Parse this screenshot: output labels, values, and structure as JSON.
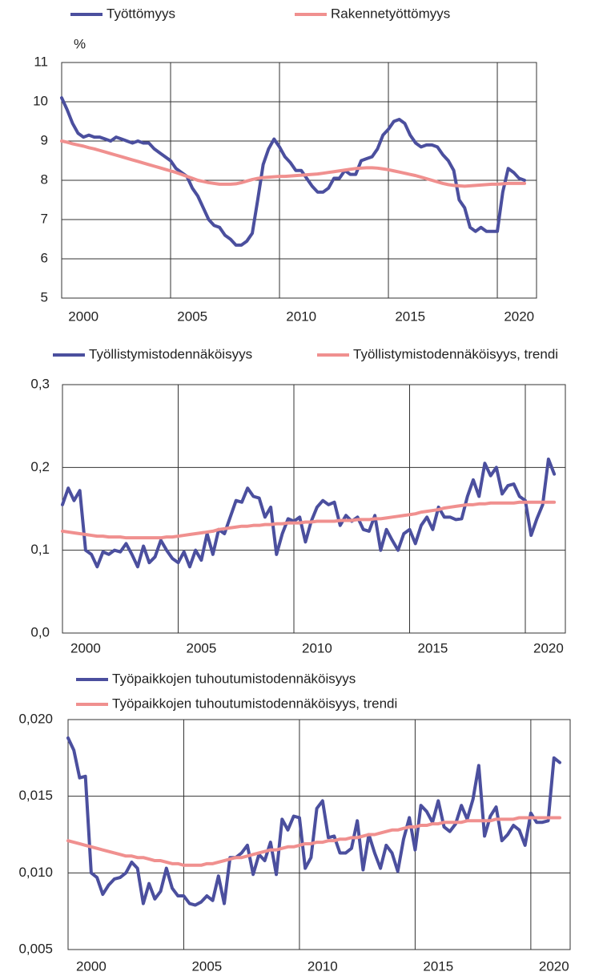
{
  "chart_data": [
    {
      "type": "line",
      "y_unit": "%",
      "x": [
        1999,
        1999.25,
        1999.5,
        1999.75,
        2000,
        2000.25,
        2000.5,
        2000.75,
        2001,
        2001.25,
        2001.5,
        2001.75,
        2002,
        2002.25,
        2002.5,
        2002.75,
        2003,
        2003.25,
        2003.5,
        2003.75,
        2004,
        2004.25,
        2004.5,
        2004.75,
        2005,
        2005.25,
        2005.5,
        2005.75,
        2006,
        2006.25,
        2006.5,
        2006.75,
        2007,
        2007.25,
        2007.5,
        2007.75,
        2008,
        2008.25,
        2008.5,
        2008.75,
        2009,
        2009.25,
        2009.5,
        2009.75,
        2010,
        2010.25,
        2010.5,
        2010.75,
        2011,
        2011.25,
        2011.5,
        2011.75,
        2012,
        2012.25,
        2012.5,
        2012.75,
        2013,
        2013.25,
        2013.5,
        2013.75,
        2014,
        2014.25,
        2014.5,
        2014.75,
        2015,
        2015.25,
        2015.5,
        2015.75,
        2016,
        2016.25,
        2016.5,
        2016.75,
        2017,
        2017.25,
        2017.5,
        2017.75,
        2018,
        2018.25,
        2018.5,
        2018.75,
        2019,
        2019.25,
        2019.5,
        2019.75,
        2020,
        2020.25
      ],
      "series": [
        {
          "name": "Työttömyys",
          "color": "#4b4f9e",
          "values": [
            10.1,
            9.8,
            9.45,
            9.2,
            9.1,
            9.15,
            9.1,
            9.1,
            9.05,
            9.0,
            9.1,
            9.05,
            9.0,
            8.95,
            9.0,
            8.95,
            8.95,
            8.8,
            8.7,
            8.6,
            8.5,
            8.3,
            8.2,
            8.1,
            7.8,
            7.6,
            7.3,
            7.0,
            6.85,
            6.8,
            6.6,
            6.5,
            6.35,
            6.35,
            6.45,
            6.65,
            7.5,
            8.4,
            8.8,
            9.05,
            8.85,
            8.6,
            8.45,
            8.25,
            8.25,
            8.05,
            7.85,
            7.7,
            7.7,
            7.8,
            8.05,
            8.05,
            8.25,
            8.15,
            8.15,
            8.5,
            8.55,
            8.6,
            8.8,
            9.15,
            9.3,
            9.5,
            9.55,
            9.45,
            9.15,
            8.95,
            8.85,
            8.9,
            8.9,
            8.85,
            8.65,
            8.5,
            8.25,
            7.5,
            7.3,
            6.8,
            6.7,
            6.8,
            6.7,
            6.7,
            6.7,
            7.7,
            8.3,
            8.2,
            8.05,
            8.0
          ]
        },
        {
          "name": "Rakennetyöttömyys",
          "color": "#f0908f",
          "values": [
            9.0,
            8.97,
            8.93,
            8.9,
            8.87,
            8.83,
            8.8,
            8.76,
            8.72,
            8.68,
            8.64,
            8.6,
            8.56,
            8.52,
            8.48,
            8.44,
            8.4,
            8.36,
            8.32,
            8.28,
            8.24,
            8.2,
            8.15,
            8.1,
            8.05,
            8.0,
            7.97,
            7.94,
            7.92,
            7.9,
            7.9,
            7.9,
            7.91,
            7.94,
            7.98,
            8.02,
            8.05,
            8.07,
            8.08,
            8.09,
            8.1,
            8.1,
            8.11,
            8.12,
            8.13,
            8.14,
            8.15,
            8.16,
            8.18,
            8.2,
            8.22,
            8.24,
            8.26,
            8.28,
            8.3,
            8.31,
            8.32,
            8.32,
            8.31,
            8.29,
            8.27,
            8.24,
            8.21,
            8.18,
            8.15,
            8.12,
            8.08,
            8.04,
            8.0,
            7.96,
            7.92,
            7.89,
            7.87,
            7.86,
            7.85,
            7.86,
            7.87,
            7.88,
            7.89,
            7.9,
            7.9,
            7.91,
            7.92,
            7.92,
            7.92,
            7.92
          ]
        }
      ],
      "xlim": [
        1999,
        2020.8
      ],
      "xticks": [
        2000,
        2005,
        2010,
        2015,
        2020
      ],
      "xgrid": [
        2004,
        2009,
        2014,
        2019
      ],
      "ylim": [
        5,
        11
      ],
      "yticks": [
        5,
        6,
        7,
        8,
        9,
        10,
        11
      ],
      "grid": true
    },
    {
      "type": "line",
      "x": [
        1999,
        1999.25,
        1999.5,
        1999.75,
        2000,
        2000.25,
        2000.5,
        2000.75,
        2001,
        2001.25,
        2001.5,
        2001.75,
        2002,
        2002.25,
        2002.5,
        2002.75,
        2003,
        2003.25,
        2003.5,
        2003.75,
        2004,
        2004.25,
        2004.5,
        2004.75,
        2005,
        2005.25,
        2005.5,
        2005.75,
        2006,
        2006.25,
        2006.5,
        2006.75,
        2007,
        2007.25,
        2007.5,
        2007.75,
        2008,
        2008.25,
        2008.5,
        2008.75,
        2009,
        2009.25,
        2009.5,
        2009.75,
        2010,
        2010.25,
        2010.5,
        2010.75,
        2011,
        2011.25,
        2011.5,
        2011.75,
        2012,
        2012.25,
        2012.5,
        2012.75,
        2013,
        2013.25,
        2013.5,
        2013.75,
        2014,
        2014.25,
        2014.5,
        2014.75,
        2015,
        2015.25,
        2015.5,
        2015.75,
        2016,
        2016.25,
        2016.5,
        2016.75,
        2017,
        2017.25,
        2017.5,
        2017.75,
        2018,
        2018.25,
        2018.5,
        2018.75,
        2019,
        2019.25,
        2019.5,
        2019.75,
        2020,
        2020.25
      ],
      "series": [
        {
          "name": "Työllistymistodennäköisyys",
          "color": "#4b4f9e",
          "values": [
            0.155,
            0.175,
            0.16,
            0.172,
            0.1,
            0.095,
            0.08,
            0.098,
            0.095,
            0.1,
            0.098,
            0.108,
            0.095,
            0.08,
            0.105,
            0.085,
            0.092,
            0.112,
            0.1,
            0.09,
            0.085,
            0.098,
            0.08,
            0.1,
            0.088,
            0.12,
            0.095,
            0.125,
            0.12,
            0.14,
            0.16,
            0.158,
            0.175,
            0.165,
            0.163,
            0.14,
            0.152,
            0.095,
            0.12,
            0.138,
            0.135,
            0.14,
            0.11,
            0.135,
            0.152,
            0.16,
            0.155,
            0.158,
            0.13,
            0.142,
            0.135,
            0.14,
            0.125,
            0.123,
            0.142,
            0.1,
            0.125,
            0.112,
            0.1,
            0.12,
            0.125,
            0.108,
            0.13,
            0.14,
            0.125,
            0.152,
            0.14,
            0.14,
            0.137,
            0.138,
            0.165,
            0.185,
            0.165,
            0.205,
            0.19,
            0.2,
            0.168,
            0.178,
            0.18,
            0.165,
            0.16,
            0.118,
            0.138,
            0.155,
            0.21,
            0.192
          ]
        },
        {
          "name": "Työllistymistodennäköisyys, trendi",
          "color": "#f0908f",
          "values": [
            0.123,
            0.122,
            0.121,
            0.12,
            0.119,
            0.118,
            0.117,
            0.117,
            0.116,
            0.116,
            0.116,
            0.115,
            0.115,
            0.115,
            0.115,
            0.115,
            0.115,
            0.115,
            0.116,
            0.116,
            0.117,
            0.118,
            0.119,
            0.12,
            0.121,
            0.122,
            0.123,
            0.125,
            0.126,
            0.127,
            0.128,
            0.129,
            0.129,
            0.13,
            0.13,
            0.131,
            0.131,
            0.132,
            0.132,
            0.133,
            0.133,
            0.133,
            0.134,
            0.134,
            0.135,
            0.135,
            0.135,
            0.135,
            0.136,
            0.136,
            0.136,
            0.137,
            0.137,
            0.137,
            0.138,
            0.138,
            0.139,
            0.14,
            0.141,
            0.142,
            0.143,
            0.144,
            0.146,
            0.147,
            0.148,
            0.149,
            0.151,
            0.152,
            0.153,
            0.154,
            0.155,
            0.155,
            0.156,
            0.156,
            0.157,
            0.157,
            0.157,
            0.157,
            0.157,
            0.158,
            0.158,
            0.158,
            0.158,
            0.158,
            0.158,
            0.158
          ]
        }
      ],
      "xlim": [
        1999,
        2020.73
      ],
      "xticks": [
        2000,
        2005,
        2010,
        2015,
        2020
      ],
      "xgrid": [
        2004,
        2009,
        2014,
        2019
      ],
      "ylim": [
        0,
        0.3
      ],
      "yticks": [
        {
          "value": 0,
          "label": "0,0"
        },
        {
          "value": 0.1,
          "label": "0,1"
        },
        {
          "value": 0.2,
          "label": "0,2"
        },
        {
          "value": 0.3,
          "label": "0,3"
        }
      ],
      "grid": true
    },
    {
      "type": "line",
      "x": [
        1999,
        1999.25,
        1999.5,
        1999.75,
        2000,
        2000.25,
        2000.5,
        2000.75,
        2001,
        2001.25,
        2001.5,
        2001.75,
        2002,
        2002.25,
        2002.5,
        2002.75,
        2003,
        2003.25,
        2003.5,
        2003.75,
        2004,
        2004.25,
        2004.5,
        2004.75,
        2005,
        2005.25,
        2005.5,
        2005.75,
        2006,
        2006.25,
        2006.5,
        2006.75,
        2007,
        2007.25,
        2007.5,
        2007.75,
        2008,
        2008.25,
        2008.5,
        2008.75,
        2009,
        2009.25,
        2009.5,
        2009.75,
        2010,
        2010.25,
        2010.5,
        2010.75,
        2011,
        2011.25,
        2011.5,
        2011.75,
        2012,
        2012.25,
        2012.5,
        2012.75,
        2013,
        2013.25,
        2013.5,
        2013.75,
        2014,
        2014.25,
        2014.5,
        2014.75,
        2015,
        2015.25,
        2015.5,
        2015.75,
        2016,
        2016.25,
        2016.5,
        2016.75,
        2017,
        2017.25,
        2017.5,
        2017.75,
        2018,
        2018.25,
        2018.5,
        2018.75,
        2019,
        2019.25,
        2019.5,
        2019.75,
        2020,
        2020.25
      ],
      "series": [
        {
          "name": "Työpaikkojen tuhoutumistodennäköisyys",
          "color": "#4b4f9e",
          "values": [
            0.0188,
            0.018,
            0.0162,
            0.0163,
            0.01,
            0.0097,
            0.0086,
            0.0092,
            0.0096,
            0.0097,
            0.01,
            0.0107,
            0.0103,
            0.008,
            0.0093,
            0.0083,
            0.0088,
            0.0103,
            0.009,
            0.0085,
            0.0085,
            0.008,
            0.0079,
            0.0081,
            0.0085,
            0.0082,
            0.0098,
            0.008,
            0.011,
            0.011,
            0.0113,
            0.0118,
            0.0099,
            0.0112,
            0.0108,
            0.012,
            0.0099,
            0.0135,
            0.0128,
            0.0137,
            0.0136,
            0.0103,
            0.011,
            0.0142,
            0.0147,
            0.0123,
            0.0124,
            0.0113,
            0.0113,
            0.0116,
            0.0134,
            0.0102,
            0.0125,
            0.0113,
            0.0103,
            0.0118,
            0.0113,
            0.0101,
            0.0122,
            0.0136,
            0.0115,
            0.0144,
            0.014,
            0.0133,
            0.0147,
            0.013,
            0.0127,
            0.0132,
            0.0144,
            0.0135,
            0.0148,
            0.017,
            0.0124,
            0.0137,
            0.0143,
            0.0121,
            0.0125,
            0.0131,
            0.0128,
            0.0118,
            0.0139,
            0.0133,
            0.0133,
            0.0134,
            0.0175,
            0.0172
          ]
        },
        {
          "name": "Työpaikkojen tuhoutumistodennäköisyys, trendi",
          "color": "#f0908f",
          "values": [
            0.0121,
            0.012,
            0.0119,
            0.0118,
            0.0117,
            0.0116,
            0.0115,
            0.0114,
            0.0113,
            0.0112,
            0.0111,
            0.0111,
            0.011,
            0.011,
            0.0109,
            0.0108,
            0.0108,
            0.0107,
            0.0106,
            0.0106,
            0.0105,
            0.0105,
            0.0105,
            0.0105,
            0.0106,
            0.0106,
            0.0107,
            0.0108,
            0.0109,
            0.011,
            0.011,
            0.0111,
            0.0112,
            0.0113,
            0.0114,
            0.0115,
            0.0115,
            0.0116,
            0.0117,
            0.0117,
            0.0118,
            0.0119,
            0.0119,
            0.012,
            0.012,
            0.0121,
            0.0121,
            0.0122,
            0.0122,
            0.0123,
            0.0123,
            0.0124,
            0.0125,
            0.0125,
            0.0126,
            0.0127,
            0.0128,
            0.0128,
            0.0129,
            0.013,
            0.013,
            0.0131,
            0.0131,
            0.0132,
            0.0132,
            0.0133,
            0.0133,
            0.0133,
            0.0133,
            0.0134,
            0.0134,
            0.0134,
            0.0134,
            0.0134,
            0.0135,
            0.0135,
            0.0135,
            0.0135,
            0.0136,
            0.0136,
            0.0136,
            0.0136,
            0.0136,
            0.0136,
            0.0136,
            0.0136
          ]
        }
      ],
      "xlim": [
        1999,
        2020.7
      ],
      "xticks": [
        2000,
        2005,
        2010,
        2015,
        2020
      ],
      "xgrid": [
        2004,
        2009,
        2014,
        2019
      ],
      "ylim": [
        0.005,
        0.02
      ],
      "yticks": [
        {
          "value": 0.005,
          "label": "0,005"
        },
        {
          "value": 0.01,
          "label": "0,010"
        },
        {
          "value": 0.015,
          "label": "0,015"
        },
        {
          "value": 0.02,
          "label": "0,020"
        }
      ],
      "grid": true
    }
  ]
}
